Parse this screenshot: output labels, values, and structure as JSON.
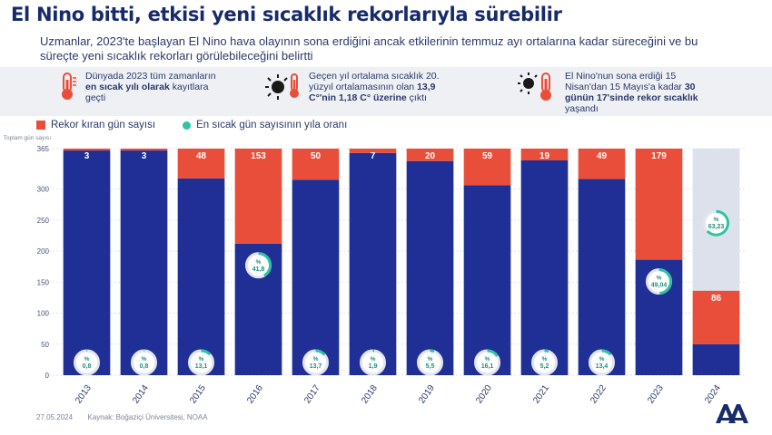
{
  "header": {
    "title": "El Nino bitti, etkisi yeni sıcaklık rekorlarıyla sürebilir",
    "subtitle": "Uzmanlar, 2023'te başlayan El Nino hava olayının sona erdiğini ancak etkilerinin temmuz ayı ortalarına kadar süreceğini ve bu süreçte yeni sıcaklık rekorları görülebileceğini belirtti"
  },
  "facts": [
    {
      "icon": "thermometer-icon",
      "text_pre": "Dünyada 2023 tüm zamanların ",
      "text_bold": "en sıcak yılı olarak",
      "text_post": " kayıtlara geçti"
    },
    {
      "icon": "sun-thermometer-icon",
      "text_pre": "Geçen yıl ortalama sıcaklık 20. yüzyıl ortalamasının olan ",
      "text_bold": "13,9 C°'nin 1,18 C° üzerine",
      "text_post": " çıktı"
    },
    {
      "icon": "sun-thermometer-icon",
      "text_pre": "El Nino'nun sona erdiği 15 Nisan'dan 15 Mayıs'a kadar ",
      "text_bold": "30 günün 17'sinde rekor sıcaklık",
      "text_post": " yaşandı"
    }
  ],
  "legend": {
    "record_label": "Rekor kıran gün sayısı",
    "ratio_label": "En sıcak gün sayısının yıla oranı"
  },
  "colors": {
    "record": "#e94e3b",
    "bar": "#1f2f95",
    "ratio": "#2bc4a4",
    "empty": "#dde1ec"
  },
  "chart_data": {
    "type": "bar",
    "ylabel": "Toplam gün sayısı",
    "ylim": [
      0,
      365
    ],
    "yticks": [
      0,
      50,
      100,
      150,
      200,
      250,
      300,
      365
    ],
    "categories": [
      "2013",
      "2014",
      "2015",
      "2016",
      "2017",
      "2018",
      "2019",
      "2020",
      "2021",
      "2022",
      "2023",
      "2024"
    ],
    "series": [
      {
        "name": "Rekor kıran gün sayısı",
        "values": [
          3,
          3,
          48,
          153,
          50,
          7,
          20,
          59,
          19,
          49,
          179,
          86
        ]
      },
      {
        "name": "En sıcak gün sayısının yıla oranı",
        "values": [
          0.8,
          0.8,
          13.1,
          41.8,
          13.7,
          1.9,
          5.5,
          16.1,
          5.2,
          13.4,
          49.04,
          63.23
        ]
      }
    ],
    "ratio_labels": [
      "0,8",
      "0,8",
      "13,1",
      "41,8",
      "13,7",
      "1,9",
      "5,5",
      "16,1",
      "5,2",
      "13,4",
      "49,04",
      "63,23"
    ],
    "year_totals": [
      365,
      365,
      365,
      366,
      365,
      365,
      365,
      366,
      365,
      365,
      365,
      136
    ]
  },
  "footer": {
    "date": "27.05.2024",
    "source": "Kaynak: Boğaziçi Üniversitesi, NOAA"
  },
  "logo": {
    "text": "AA"
  }
}
